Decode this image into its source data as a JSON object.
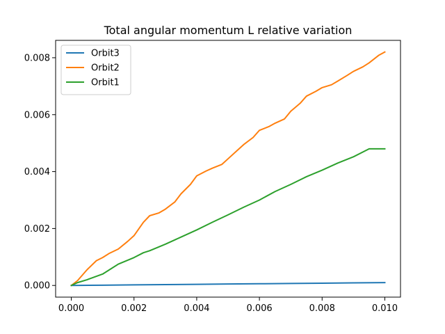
{
  "chart_data": {
    "type": "line",
    "title": "Total angular momentum L relative variation",
    "xlabel": "",
    "ylabel": "",
    "xlim": [
      -0.0005,
      0.0105
    ],
    "ylim": [
      -0.00041,
      0.00861
    ],
    "x_ticks": [
      0.0,
      0.002,
      0.004,
      0.006,
      0.008,
      0.01
    ],
    "x_tick_labels": [
      "0.000",
      "0.002",
      "0.004",
      "0.006",
      "0.008",
      "0.010"
    ],
    "y_ticks": [
      0.0,
      0.002,
      0.004,
      0.006,
      0.008
    ],
    "y_tick_labels": [
      "0.000",
      "0.002",
      "0.004",
      "0.006",
      "0.008"
    ],
    "grid": false,
    "legend_position": "top-left",
    "series": [
      {
        "name": "Orbit3",
        "color": "#1f77b4",
        "x": [
          0.0,
          0.001,
          0.002,
          0.003,
          0.004,
          0.005,
          0.006,
          0.007,
          0.008,
          0.009,
          0.01
        ],
        "y": [
          0.0,
          1e-05,
          2e-05,
          3e-05,
          4e-05,
          5e-05,
          6e-05,
          7e-05,
          8e-05,
          9e-05,
          0.0001
        ]
      },
      {
        "name": "Orbit2",
        "color": "#ff7f0e",
        "x": [
          0.0,
          0.0002,
          0.0005,
          0.0008,
          0.001,
          0.0012,
          0.0015,
          0.0018,
          0.002,
          0.0023,
          0.0025,
          0.0028,
          0.003,
          0.0033,
          0.0035,
          0.0038,
          0.004,
          0.0043,
          0.0045,
          0.0048,
          0.005,
          0.0053,
          0.0055,
          0.0058,
          0.006,
          0.0063,
          0.0065,
          0.0068,
          0.007,
          0.0073,
          0.0075,
          0.0078,
          0.008,
          0.0083,
          0.0085,
          0.0088,
          0.009,
          0.0093,
          0.0095,
          0.0098,
          0.01
        ],
        "y": [
          0.0,
          0.00017,
          0.00055,
          0.00087,
          0.00098,
          0.00112,
          0.00128,
          0.00155,
          0.00175,
          0.00222,
          0.00245,
          0.00255,
          0.00268,
          0.00293,
          0.00322,
          0.00355,
          0.00385,
          0.00402,
          0.00412,
          0.00425,
          0.00445,
          0.00475,
          0.00495,
          0.0052,
          0.00545,
          0.00558,
          0.0057,
          0.00585,
          0.00612,
          0.0064,
          0.00665,
          0.00682,
          0.00695,
          0.00705,
          0.00718,
          0.00738,
          0.00752,
          0.00768,
          0.00782,
          0.00808,
          0.0082
        ]
      },
      {
        "name": "Orbit1",
        "color": "#2ca02c",
        "x": [
          0.0,
          0.0002,
          0.0005,
          0.001,
          0.0015,
          0.002,
          0.0023,
          0.0025,
          0.003,
          0.0035,
          0.004,
          0.0045,
          0.005,
          0.0055,
          0.006,
          0.0065,
          0.007,
          0.0075,
          0.008,
          0.0085,
          0.009,
          0.0095,
          0.01
        ],
        "y": [
          0.0,
          0.0001,
          0.0002,
          0.0004,
          0.00075,
          0.00098,
          0.00115,
          0.00122,
          0.00145,
          0.0017,
          0.00195,
          0.00222,
          0.00248,
          0.00275,
          0.003,
          0.0033,
          0.00355,
          0.00382,
          0.00405,
          0.0043,
          0.00452,
          0.0048,
          0.0048
        ]
      }
    ]
  }
}
